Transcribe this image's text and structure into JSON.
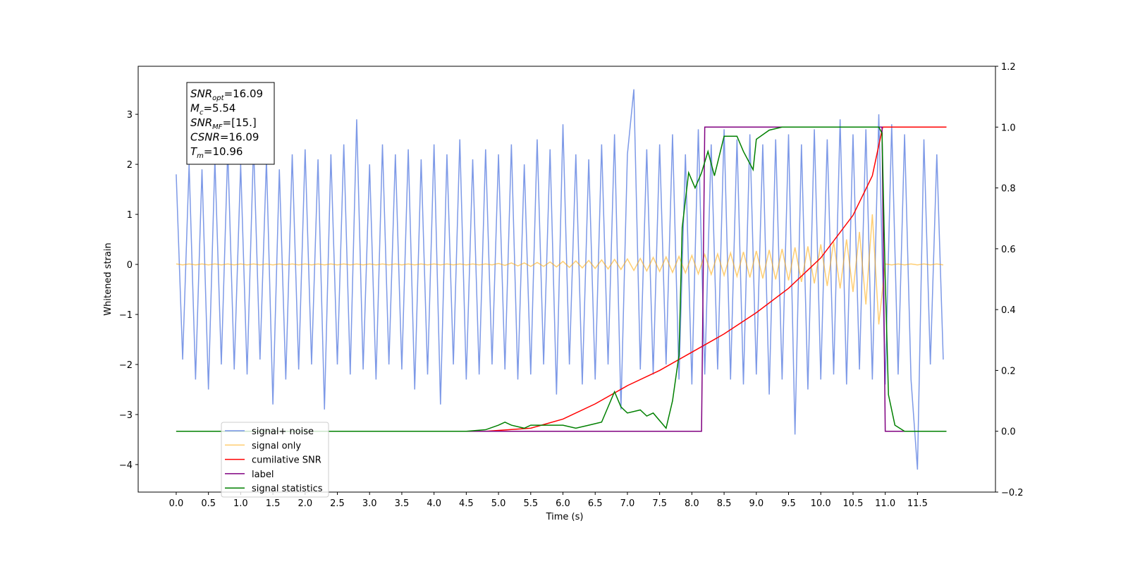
{
  "chart_data": {
    "type": "line",
    "xlabel": "Time (s)",
    "ylabel": "Whitened strain",
    "xlim": [
      -0.59,
      12.71
    ],
    "ylim": [
      -4.55,
      3.96
    ],
    "y2lim": [
      -0.2,
      1.2
    ],
    "xticks": [
      {
        "value": 0,
        "label": "0.0"
      },
      {
        "value": 0.5,
        "label": "0.5"
      },
      {
        "value": 1,
        "label": "1.0"
      },
      {
        "value": 1.5,
        "label": "1.5"
      },
      {
        "value": 2,
        "label": "2.0"
      },
      {
        "value": 2.5,
        "label": "2.5"
      },
      {
        "value": 3,
        "label": "3.0"
      },
      {
        "value": 3.5,
        "label": "3.5"
      },
      {
        "value": 4,
        "label": "4.0"
      },
      {
        "value": 4.5,
        "label": "4.5"
      },
      {
        "value": 5,
        "label": "5.0"
      },
      {
        "value": 5.5,
        "label": "5.5"
      },
      {
        "value": 6,
        "label": "6.0"
      },
      {
        "value": 6.5,
        "label": "6.5"
      },
      {
        "value": 7,
        "label": "7.0"
      },
      {
        "value": 7.5,
        "label": "7.5"
      },
      {
        "value": 8,
        "label": "8.0"
      },
      {
        "value": 8.5,
        "label": "8.5"
      },
      {
        "value": 9,
        "label": "9.0"
      },
      {
        "value": 9.5,
        "label": "9.5"
      },
      {
        "value": 10,
        "label": "10.0"
      },
      {
        "value": 10.5,
        "label": "10.5"
      },
      {
        "value": 11,
        "label": "11.0"
      },
      {
        "value": 11.5,
        "label": "11.5"
      }
    ],
    "yticks": [
      {
        "value": -4,
        "label": "−4"
      },
      {
        "value": -3,
        "label": "−3"
      },
      {
        "value": -2,
        "label": "−2"
      },
      {
        "value": -1,
        "label": "−1"
      },
      0,
      1,
      2,
      3
    ],
    "y2ticks": [
      {
        "value": -0.2,
        "label": "−0.2"
      },
      {
        "value": 0,
        "label": "0.0"
      },
      {
        "value": 0.2,
        "label": "0.2"
      },
      {
        "value": 0.4,
        "label": "0.4"
      },
      {
        "value": 0.6,
        "label": "0.6"
      },
      {
        "value": 0.8,
        "label": "0.8"
      },
      {
        "value": 1,
        "label": "1.0"
      },
      {
        "value": 1.2,
        "label": "1.2"
      }
    ],
    "x": [
      0,
      0.1,
      0.2,
      0.3,
      0.4,
      0.5,
      0.6,
      0.7,
      0.8,
      0.9,
      1,
      1.1,
      1.2,
      1.3,
      1.4,
      1.5,
      1.6,
      1.7,
      1.8,
      1.9,
      2,
      2.1,
      2.2,
      2.3,
      2.4,
      2.5,
      2.6,
      2.7,
      2.8,
      2.9,
      3,
      3.1,
      3.2,
      3.3,
      3.4,
      3.5,
      3.6,
      3.7,
      3.8,
      3.9,
      4,
      4.1,
      4.2,
      4.3,
      4.4,
      4.5,
      4.6,
      4.7,
      4.8,
      4.9,
      5,
      5.1,
      5.2,
      5.3,
      5.4,
      5.5,
      5.6,
      5.7,
      5.8,
      5.9,
      6,
      6.1,
      6.2,
      6.3,
      6.4,
      6.5,
      6.6,
      6.7,
      6.8,
      6.9,
      7,
      7.1,
      7.2,
      7.3,
      7.4,
      7.5,
      7.6,
      7.7,
      7.8,
      7.9,
      8,
      8.1,
      8.2,
      8.3,
      8.4,
      8.5,
      8.6,
      8.7,
      8.8,
      8.9,
      9,
      9.1,
      9.2,
      9.3,
      9.4,
      9.5,
      9.6,
      9.7,
      9.8,
      9.9,
      10,
      10.1,
      10.2,
      10.3,
      10.4,
      10.5,
      10.6,
      10.7,
      10.8,
      10.9,
      11,
      11.1,
      11.2,
      11.3,
      11.4,
      11.5,
      11.6,
      11.7,
      11.8,
      11.9
    ],
    "series": [
      {
        "name": "signal+ noise",
        "color": "#7693e6",
        "values": [
          1.8,
          -1.9,
          2.0,
          -2.3,
          1.9,
          -2.5,
          2.1,
          -2.0,
          2.3,
          -2.1,
          2.0,
          -2.2,
          2.4,
          -1.9,
          2.1,
          -2.8,
          1.9,
          -2.3,
          2.2,
          -2.1,
          2.3,
          -2.0,
          2.1,
          -2.9,
          2.2,
          -2.0,
          2.4,
          -2.2,
          2.9,
          -2.1,
          2.0,
          -2.3,
          2.4,
          -2.0,
          2.2,
          -2.1,
          2.3,
          -2.5,
          2.1,
          -2.2,
          2.4,
          -2.8,
          2.2,
          -2.0,
          2.5,
          -2.3,
          2.1,
          -2.2,
          2.3,
          -2.0,
          2.2,
          -2.1,
          2.4,
          -2.3,
          2.0,
          -2.2,
          2.5,
          -2.0,
          2.3,
          -2.6,
          2.8,
          -2.0,
          2.2,
          -2.4,
          2.1,
          -2.3,
          2.4,
          -2.0,
          2.6,
          -2.9,
          2.2,
          3.5,
          -2.1,
          2.3,
          -2.2,
          2.4,
          -2.0,
          2.6,
          -2.3,
          2.2,
          -2.4,
          2.7,
          -2.2,
          2.4,
          -2.1,
          2.7,
          -2.3,
          2.5,
          -2.4,
          2.6,
          -2.2,
          2.4,
          -2.6,
          2.5,
          -2.3,
          2.6,
          -3.4,
          2.4,
          -2.5,
          2.7,
          -2.3,
          2.5,
          -2.2,
          2.9,
          -2.4,
          2.6,
          -2.1,
          2.7,
          -2.3,
          3.0,
          -2.4,
          2.8,
          -2.2,
          2.6,
          -2.3,
          -4.1,
          2.5,
          -2.0,
          2.2,
          -1.9
        ]
      },
      {
        "name": "signal only",
        "color": "#ffa500",
        "values": [
          0.01,
          -0.01,
          0.01,
          -0.01,
          0.01,
          -0.01,
          0.01,
          -0.01,
          0.01,
          -0.01,
          0.01,
          -0.01,
          0.01,
          -0.01,
          0.01,
          -0.01,
          0.01,
          -0.01,
          0.01,
          -0.01,
          0.01,
          -0.01,
          0.01,
          -0.01,
          0.01,
          -0.01,
          0.01,
          -0.01,
          0.01,
          -0.01,
          0.01,
          -0.01,
          0.01,
          -0.01,
          0.01,
          -0.01,
          0.01,
          -0.01,
          0.01,
          -0.01,
          0.01,
          -0.01,
          0.01,
          -0.01,
          0.01,
          -0.01,
          0.01,
          -0.01,
          0.01,
          -0.01,
          0.02,
          -0.02,
          0.03,
          -0.03,
          0.03,
          -0.04,
          0.04,
          -0.04,
          0.05,
          -0.05,
          0.06,
          -0.06,
          0.07,
          -0.07,
          0.08,
          -0.08,
          0.09,
          -0.09,
          0.1,
          -0.1,
          0.11,
          -0.12,
          0.12,
          -0.13,
          0.14,
          -0.14,
          0.15,
          -0.16,
          0.16,
          -0.17,
          0.18,
          -0.19,
          0.2,
          -0.2,
          0.21,
          -0.22,
          0.23,
          -0.24,
          0.25,
          -0.26,
          0.27,
          -0.28,
          0.29,
          -0.3,
          0.31,
          -0.32,
          0.34,
          -0.35,
          0.36,
          -0.38,
          0.4,
          -0.43,
          0.45,
          -0.48,
          0.5,
          -0.55,
          0.65,
          -0.8,
          1.0,
          -1.2,
          0.01,
          -0.01,
          0.01,
          -0.01,
          0.01,
          -0.01,
          0.01,
          -0.01,
          0.01,
          -0.01
        ]
      },
      {
        "name": "cumilative SNR",
        "color": "#ff0000",
        "axis": "y2",
        "x": [
          0,
          4.8,
          5.5,
          6.0,
          6.5,
          7.0,
          7.5,
          8.0,
          8.5,
          9.0,
          9.5,
          10.0,
          10.5,
          10.8,
          10.96,
          11.95
        ],
        "values": [
          0,
          0,
          0.01,
          0.04,
          0.09,
          0.15,
          0.2,
          0.26,
          0.32,
          0.39,
          0.47,
          0.57,
          0.71,
          0.84,
          1.0,
          1.0
        ]
      },
      {
        "name": "label",
        "color": "#800080",
        "axis": "y2",
        "x": [
          0,
          8.15,
          8.2,
          10.95,
          11.0,
          11.95
        ],
        "values": [
          0,
          0,
          1,
          1,
          0,
          0
        ]
      },
      {
        "name": "signal statistics",
        "color": "#008000",
        "axis": "y2",
        "x": [
          0,
          4.5,
          4.8,
          5.0,
          5.1,
          5.2,
          5.4,
          5.5,
          5.8,
          6.0,
          6.2,
          6.4,
          6.6,
          6.8,
          6.9,
          7.0,
          7.2,
          7.3,
          7.4,
          7.6,
          7.7,
          7.8,
          7.85,
          7.95,
          8.05,
          8.15,
          8.25,
          8.35,
          8.5,
          8.7,
          8.8,
          8.95,
          9.0,
          9.2,
          9.4,
          10.9,
          10.95,
          11.0,
          11.05,
          11.15,
          11.3,
          11.95
        ],
        "values": [
          0,
          0,
          0.005,
          0.02,
          0.03,
          0.02,
          0.01,
          0.02,
          0.02,
          0.02,
          0.01,
          0.02,
          0.03,
          0.13,
          0.08,
          0.06,
          0.07,
          0.05,
          0.06,
          0.01,
          0.1,
          0.25,
          0.67,
          0.85,
          0.8,
          0.85,
          0.92,
          0.84,
          0.97,
          0.97,
          0.92,
          0.86,
          0.96,
          0.99,
          1.0,
          1.0,
          0.98,
          0.5,
          0.12,
          0.02,
          0,
          0
        ]
      }
    ],
    "annotation": [
      {
        "name": "SNR",
        "sub": "opt",
        "text": "=16.09"
      },
      {
        "name": "M",
        "sub": "c",
        "text": "=5.54"
      },
      {
        "name": "SNR",
        "sub": "MF",
        "text": "=[15.]"
      },
      {
        "name": "CSNR",
        "text": "=16.09"
      },
      {
        "name": "T",
        "sub": "m",
        "text": "=10.96"
      }
    ],
    "legend": "lower left"
  }
}
